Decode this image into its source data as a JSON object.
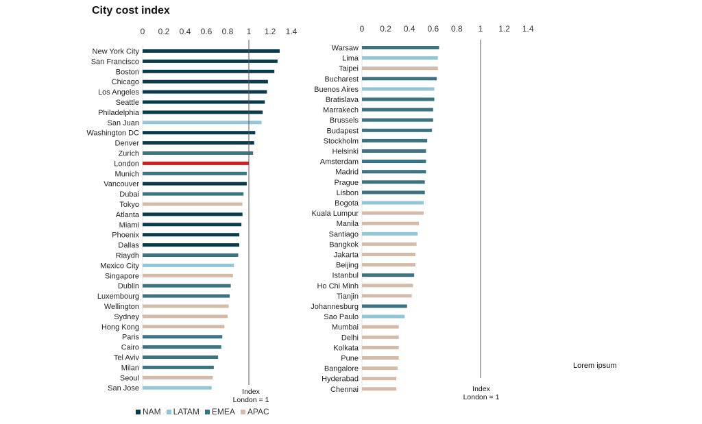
{
  "title": "City cost index",
  "side_note": "Lorem ipsum",
  "colors": {
    "NAM": "#0c3a4d",
    "LATAM": "#92c6d6",
    "EMEA": "#3b7382",
    "APAC": "#d4bba9",
    "highlight": "#cc1f22"
  },
  "legend": [
    {
      "region": "NAM",
      "label": "NAM"
    },
    {
      "region": "LATAM",
      "label": "LATAM"
    },
    {
      "region": "EMEA",
      "label": "EMEA"
    },
    {
      "region": "APAC",
      "label": "APAC"
    }
  ],
  "chart_data": [
    {
      "type": "bar",
      "orientation": "horizontal",
      "xlim": [
        0,
        1.4
      ],
      "xticks": [
        0,
        0.2,
        0.4,
        0.6,
        0.8,
        1,
        1.2,
        1.4
      ],
      "reference_line": {
        "value": 1,
        "label_line1": "Index",
        "label_line2": "London = 1"
      },
      "categories": [
        "New York City",
        "San Francisco",
        "Boston",
        "Chicago",
        "Los Angeles",
        "Seattle",
        "Philadelphia",
        "San Juan",
        "Washington DC",
        "Denver",
        "Zurich",
        "London",
        "Munich",
        "Vancouver",
        "Dubai",
        "Tokyo",
        "Atlanta",
        "Miami",
        "Phoenix",
        "Dallas",
        "Riaydh",
        "Mexico City",
        "Singapore",
        "Dublin",
        "Luxembourg",
        "Wellington",
        "Sydney",
        "Hong Kong",
        "Paris",
        "Cairo",
        "Tel Aviv",
        "Milan",
        "Seoul",
        "San Jose"
      ],
      "values": [
        1.29,
        1.27,
        1.24,
        1.18,
        1.17,
        1.15,
        1.13,
        1.12,
        1.06,
        1.05,
        1.04,
        1.0,
        0.98,
        0.98,
        0.95,
        0.94,
        0.94,
        0.93,
        0.91,
        0.91,
        0.9,
        0.86,
        0.85,
        0.83,
        0.82,
        0.81,
        0.8,
        0.77,
        0.75,
        0.74,
        0.71,
        0.67,
        0.66,
        0.65
      ],
      "regions": [
        "NAM",
        "NAM",
        "NAM",
        "NAM",
        "NAM",
        "NAM",
        "NAM",
        "LATAM",
        "NAM",
        "NAM",
        "EMEA",
        "EMEA",
        "EMEA",
        "NAM",
        "EMEA",
        "APAC",
        "NAM",
        "NAM",
        "NAM",
        "NAM",
        "EMEA",
        "LATAM",
        "APAC",
        "EMEA",
        "EMEA",
        "APAC",
        "APAC",
        "APAC",
        "EMEA",
        "EMEA",
        "EMEA",
        "EMEA",
        "APAC",
        "LATAM"
      ],
      "highlight": "London"
    },
    {
      "type": "bar",
      "orientation": "horizontal",
      "xlim": [
        0,
        1.4
      ],
      "xticks": [
        0,
        0.2,
        0.4,
        0.6,
        0.8,
        1,
        1.2,
        1.4
      ],
      "reference_line": {
        "value": 1,
        "label_line1": "Index",
        "label_line2": "London = 1"
      },
      "categories": [
        "Warsaw",
        "Lima",
        "Taipei",
        "Bucharest",
        "Buenos Aires",
        "Bratislava",
        "Marrakech",
        "Brussels",
        "Budapest",
        "Stockholm",
        "Helsinki",
        "Amsterdam",
        "Madrid",
        "Prague",
        "Lisbon",
        "Bogota",
        "Kuala Lumpur",
        "Manila",
        "Santiago",
        "Bangkok",
        "Jakarta",
        "Beijing",
        "Istanbul",
        "Ho Chi Minh",
        "Tianjin",
        "Johannesburg",
        "Sao Paulo",
        "Mumbai",
        "Delhi",
        "Kolkata",
        "Pune",
        "Bangalore",
        "Hyderabad",
        "Chennai"
      ],
      "values": [
        0.65,
        0.64,
        0.64,
        0.63,
        0.61,
        0.61,
        0.6,
        0.6,
        0.59,
        0.55,
        0.54,
        0.54,
        0.54,
        0.53,
        0.53,
        0.52,
        0.52,
        0.48,
        0.47,
        0.46,
        0.45,
        0.45,
        0.44,
        0.43,
        0.42,
        0.38,
        0.36,
        0.31,
        0.31,
        0.31,
        0.31,
        0.3,
        0.29,
        0.29
      ],
      "regions": [
        "EMEA",
        "LATAM",
        "APAC",
        "EMEA",
        "LATAM",
        "EMEA",
        "EMEA",
        "EMEA",
        "EMEA",
        "EMEA",
        "EMEA",
        "EMEA",
        "EMEA",
        "EMEA",
        "EMEA",
        "LATAM",
        "APAC",
        "APAC",
        "LATAM",
        "APAC",
        "APAC",
        "APAC",
        "EMEA",
        "APAC",
        "APAC",
        "EMEA",
        "LATAM",
        "APAC",
        "APAC",
        "APAC",
        "APAC",
        "APAC",
        "APAC",
        "APAC"
      ],
      "highlight": ""
    }
  ]
}
